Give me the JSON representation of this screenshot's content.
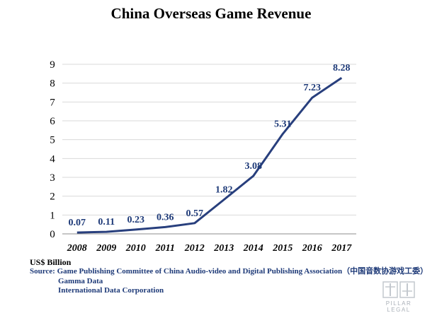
{
  "chart_data": {
    "type": "line",
    "title": "China Overseas Game Revenue",
    "x": [
      "2008",
      "2009",
      "2010",
      "2011",
      "2012",
      "2013",
      "2014",
      "2015",
      "2016",
      "2017"
    ],
    "series": [
      {
        "values": [
          0.07,
          0.11,
          0.23,
          0.36,
          0.57,
          1.82,
          3.08,
          5.31,
          7.23,
          8.28
        ]
      }
    ],
    "data_labels": [
      "0.07",
      "0.11",
      "0.23",
      "0.36",
      "0.57",
      "1.82",
      "3.08",
      "5.31",
      "7.23",
      "8.28"
    ],
    "yticks": [
      "0",
      "1",
      "2",
      "3",
      "4",
      "5",
      "6",
      "7",
      "8",
      "9"
    ],
    "ylim": [
      0,
      9
    ],
    "grid": true,
    "line_color": "#283f7d"
  },
  "unit_label": "US$ Billion",
  "sources": [
    "Source: Game Publishing Committee of China Audio-video and Digital Publishing Association（中国音数协游戏工委）",
    "Gamma Data",
    "International Data Corporation"
  ],
  "logo": {
    "text": "PILLAR LEGAL"
  }
}
